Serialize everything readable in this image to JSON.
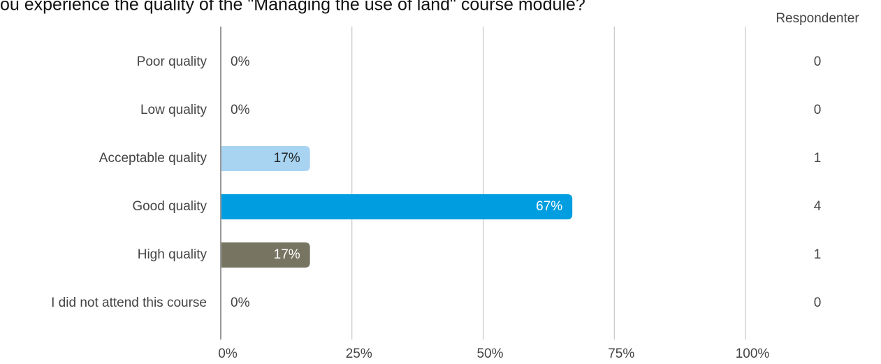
{
  "chart_data": {
    "type": "bar",
    "orientation": "horizontal",
    "title": "ou experience the quality of the \"Managing the use of land\" course module?",
    "categories": [
      "Poor quality",
      "Low quality",
      "Acceptable quality",
      "Good quality",
      "High quality",
      "I did not attend this course"
    ],
    "values": [
      0,
      0,
      17,
      67,
      17,
      0
    ],
    "value_labels": [
      "0%",
      "0%",
      "17%",
      "67%",
      "17%",
      "0%"
    ],
    "colors": [
      "#a8d4f2",
      "#a8d4f2",
      "#a8d4f2",
      "#009ee0",
      "#777562",
      "#a8d4f2"
    ],
    "counts_header": "Respondenter",
    "counts": [
      0,
      0,
      1,
      4,
      1,
      0
    ],
    "xlim": [
      0,
      100
    ],
    "xticks": [
      {
        "value": 0,
        "label": "0%"
      },
      {
        "value": 25,
        "label": "25%"
      },
      {
        "value": 50,
        "label": "50%"
      },
      {
        "value": 75,
        "label": "75%"
      },
      {
        "value": 100,
        "label": "100%"
      }
    ],
    "grid": true
  }
}
